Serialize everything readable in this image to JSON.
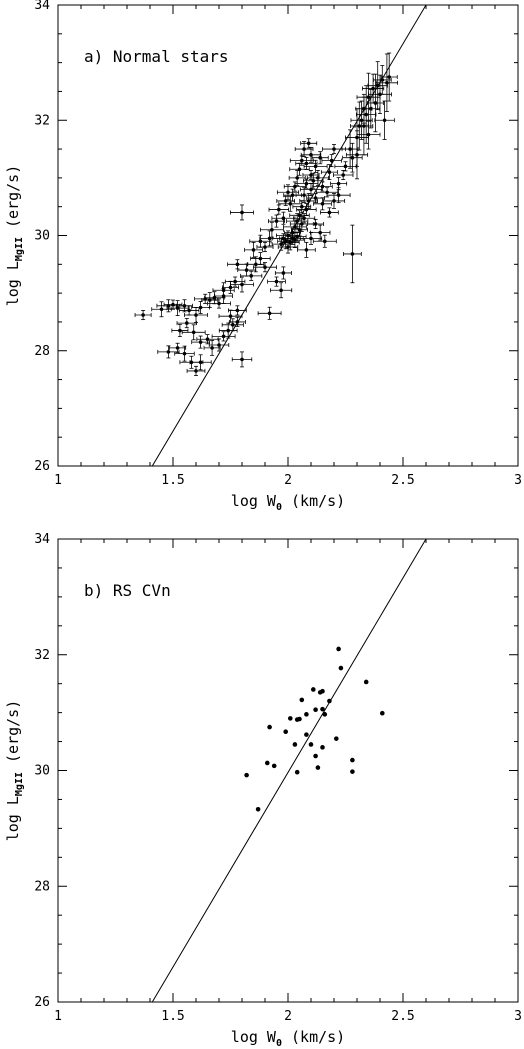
{
  "chart_data": [
    {
      "type": "scatter",
      "panel_label": "a) Normal stars",
      "xlabel": {
        "main": "log W",
        "sub": "0",
        "unit": " (km/s)"
      },
      "ylabel": {
        "main": "log L",
        "sub": "MgII",
        "unit": " (erg/s)"
      },
      "xlim": [
        1,
        3
      ],
      "ylim": [
        26,
        34
      ],
      "xticks": [
        "1",
        "1.5",
        "2",
        "2.5",
        "3"
      ],
      "yticks": [
        "26",
        "28",
        "30",
        "32",
        "34"
      ],
      "error_bars": true,
      "fit_line": {
        "x": [
          1.41,
          2.6
        ],
        "y": [
          26,
          34
        ]
      },
      "points": [
        [
          1.37,
          28.62
        ],
        [
          1.45,
          28.72
        ],
        [
          1.48,
          28.78
        ],
        [
          1.5,
          28.8
        ],
        [
          1.52,
          28.74
        ],
        [
          1.55,
          28.78
        ],
        [
          1.57,
          28.7
        ],
        [
          1.6,
          28.62
        ],
        [
          1.62,
          28.75
        ],
        [
          1.64,
          28.9
        ],
        [
          1.66,
          28.88
        ],
        [
          1.68,
          28.92
        ],
        [
          1.7,
          28.82
        ],
        [
          1.72,
          28.95
        ],
        [
          1.48,
          27.98
        ],
        [
          1.52,
          28.05
        ],
        [
          1.55,
          27.95
        ],
        [
          1.58,
          27.8
        ],
        [
          1.6,
          27.65
        ],
        [
          1.62,
          27.8
        ],
        [
          1.53,
          28.35
        ],
        [
          1.56,
          28.48
        ],
        [
          1.59,
          28.32
        ],
        [
          1.62,
          28.15
        ],
        [
          1.65,
          28.2
        ],
        [
          1.67,
          28.05
        ],
        [
          1.7,
          28.1
        ],
        [
          1.72,
          28.25
        ],
        [
          1.74,
          28.35
        ],
        [
          1.76,
          28.45
        ],
        [
          1.78,
          28.5
        ],
        [
          1.8,
          27.85
        ],
        [
          1.75,
          28.6
        ],
        [
          1.78,
          28.7
        ],
        [
          1.72,
          29.05
        ],
        [
          1.75,
          29.1
        ],
        [
          1.77,
          29.2
        ],
        [
          1.8,
          29.15
        ],
        [
          1.82,
          29.4
        ],
        [
          1.84,
          29.3
        ],
        [
          1.86,
          29.5
        ],
        [
          1.88,
          29.6
        ],
        [
          1.9,
          29.45
        ],
        [
          1.85,
          29.75
        ],
        [
          1.88,
          29.9
        ],
        [
          1.9,
          29.8
        ],
        [
          1.92,
          29.95
        ],
        [
          1.92,
          28.65
        ],
        [
          1.95,
          29.2
        ],
        [
          1.97,
          29.05
        ],
        [
          1.98,
          29.35
        ],
        [
          1.78,
          29.5
        ],
        [
          1.8,
          30.4
        ],
        [
          1.97,
          29.85
        ],
        [
          1.98,
          29.95
        ],
        [
          1.99,
          29.9
        ],
        [
          2.0,
          29.8
        ],
        [
          2.0,
          30.0
        ],
        [
          2.01,
          29.88
        ],
        [
          2.02,
          29.95
        ],
        [
          2.02,
          30.05
        ],
        [
          2.03,
          29.92
        ],
        [
          2.03,
          30.15
        ],
        [
          2.04,
          29.98
        ],
        [
          2.04,
          30.25
        ],
        [
          2.05,
          30.1
        ],
        [
          2.05,
          30.35
        ],
        [
          2.06,
          30.2
        ],
        [
          2.06,
          30.5
        ],
        [
          2.07,
          30.3
        ],
        [
          2.07,
          30.7
        ],
        [
          2.08,
          30.45
        ],
        [
          2.08,
          30.9
        ],
        [
          2.09,
          30.6
        ],
        [
          2.1,
          30.8
        ],
        [
          2.1,
          31.05
        ],
        [
          2.11,
          30.95
        ],
        [
          2.12,
          31.2
        ],
        [
          2.12,
          30.65
        ],
        [
          2.13,
          31.0
        ],
        [
          2.14,
          31.35
        ],
        [
          2.15,
          30.85
        ],
        [
          2.01,
          30.55
        ],
        [
          2.02,
          30.7
        ],
        [
          2.03,
          30.85
        ],
        [
          2.04,
          31.0
        ],
        [
          2.05,
          31.15
        ],
        [
          2.06,
          31.3
        ],
        [
          2.07,
          31.5
        ],
        [
          2.08,
          31.25
        ],
        [
          2.09,
          31.6
        ],
        [
          2.1,
          31.4
        ],
        [
          1.98,
          30.3
        ],
        [
          1.99,
          30.6
        ],
        [
          2.0,
          30.75
        ],
        [
          1.95,
          30.25
        ],
        [
          1.96,
          30.45
        ],
        [
          1.93,
          30.1
        ],
        [
          2.15,
          30.55
        ],
        [
          2.17,
          30.75
        ],
        [
          2.18,
          31.1
        ],
        [
          2.19,
          31.3
        ],
        [
          2.2,
          31.5
        ],
        [
          2.08,
          29.75
        ],
        [
          2.1,
          29.95
        ],
        [
          2.12,
          30.2
        ],
        [
          2.14,
          30.05
        ],
        [
          2.16,
          29.9
        ],
        [
          2.18,
          30.4
        ],
        [
          2.2,
          30.6
        ],
        [
          2.22,
          30.9
        ],
        [
          2.24,
          31.05
        ],
        [
          2.22,
          30.7
        ],
        [
          2.28,
          29.68
        ],
        [
          2.25,
          31.2
        ],
        [
          2.27,
          31.5
        ],
        [
          2.28,
          31.35
        ],
        [
          2.3,
          31.7
        ],
        [
          2.31,
          31.9
        ],
        [
          2.32,
          32.0
        ],
        [
          2.33,
          32.2
        ],
        [
          2.34,
          32.1
        ],
        [
          2.35,
          32.4
        ],
        [
          2.36,
          32.2
        ],
        [
          2.37,
          32.55
        ],
        [
          2.38,
          32.3
        ],
        [
          2.39,
          32.6
        ],
        [
          2.4,
          32.45
        ],
        [
          2.41,
          32.7
        ],
        [
          2.43,
          32.65
        ],
        [
          2.44,
          32.75
        ],
        [
          2.42,
          32.0
        ],
        [
          2.35,
          31.75
        ],
        [
          2.33,
          31.9
        ],
        [
          2.3,
          31.4
        ]
      ]
    },
    {
      "type": "scatter",
      "panel_label": "b) RS CVn",
      "xlabel": {
        "main": "log W",
        "sub": "0",
        "unit": " (km/s)"
      },
      "ylabel": {
        "main": "log L",
        "sub": "MgII",
        "unit": " (erg/s)"
      },
      "xlim": [
        1,
        3
      ],
      "ylim": [
        26,
        34
      ],
      "xticks": [
        "1",
        "1.5",
        "2",
        "2.5",
        "3"
      ],
      "yticks": [
        "26",
        "28",
        "30",
        "32",
        "34"
      ],
      "error_bars": false,
      "fit_line": {
        "x": [
          1.41,
          2.6
        ],
        "y": [
          26,
          34
        ]
      },
      "points": [
        [
          1.82,
          29.92
        ],
        [
          1.87,
          29.33
        ],
        [
          1.91,
          30.13
        ],
        [
          1.92,
          30.75
        ],
        [
          1.94,
          30.08
        ],
        [
          1.99,
          30.67
        ],
        [
          2.01,
          30.9
        ],
        [
          2.03,
          30.45
        ],
        [
          2.04,
          30.88
        ],
        [
          2.05,
          30.89
        ],
        [
          2.06,
          31.22
        ],
        [
          2.04,
          29.97
        ],
        [
          2.08,
          30.97
        ],
        [
          2.08,
          30.62
        ],
        [
          2.1,
          30.45
        ],
        [
          2.11,
          31.4
        ],
        [
          2.12,
          31.05
        ],
        [
          2.13,
          30.05
        ],
        [
          2.12,
          30.25
        ],
        [
          2.14,
          31.35
        ],
        [
          2.15,
          31.37
        ],
        [
          2.16,
          30.97
        ],
        [
          2.15,
          30.4
        ],
        [
          2.18,
          31.2
        ],
        [
          2.21,
          30.55
        ],
        [
          2.22,
          32.1
        ],
        [
          2.23,
          31.77
        ],
        [
          2.28,
          30.18
        ],
        [
          2.28,
          29.98
        ],
        [
          2.34,
          31.53
        ],
        [
          2.41,
          30.99
        ],
        [
          2.15,
          31.06
        ]
      ]
    }
  ]
}
